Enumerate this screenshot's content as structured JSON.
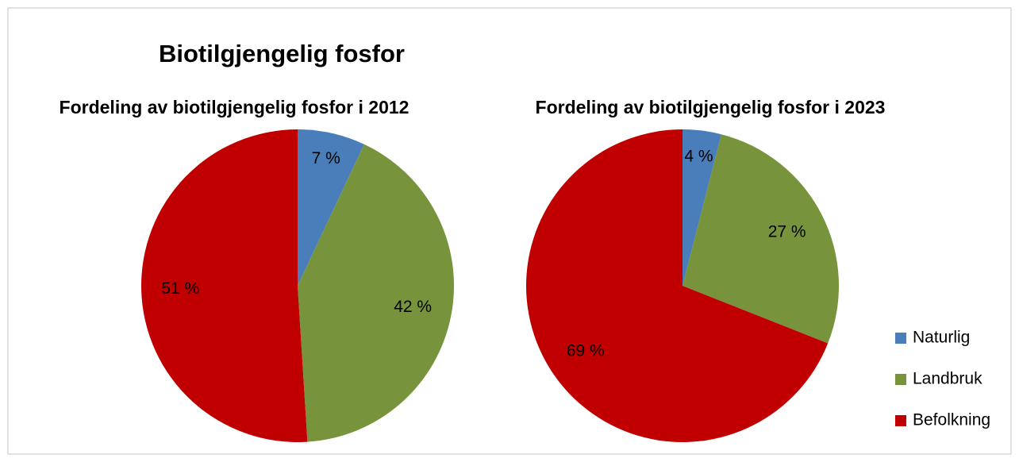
{
  "title": "Biotilgjengelig fosfor",
  "chart_data": [
    {
      "type": "pie",
      "title": "Fordeling av biotilgjengelig fosfor i 2012",
      "categories": [
        "Naturlig",
        "Landbruk",
        "Befolkning"
      ],
      "values": [
        7,
        42,
        51
      ],
      "value_labels": [
        "7 %",
        "42 %",
        "51 %"
      ],
      "colors": [
        "#4a7ebb",
        "#77933c",
        "#c00000"
      ]
    },
    {
      "type": "pie",
      "title": "Fordeling av biotilgjengelig fosfor i 2023",
      "categories": [
        "Naturlig",
        "Landbruk",
        "Befolkning"
      ],
      "values": [
        4,
        27,
        69
      ],
      "value_labels": [
        "4 %",
        "27 %",
        "69 %"
      ],
      "colors": [
        "#4a7ebb",
        "#77933c",
        "#c00000"
      ]
    }
  ]
}
